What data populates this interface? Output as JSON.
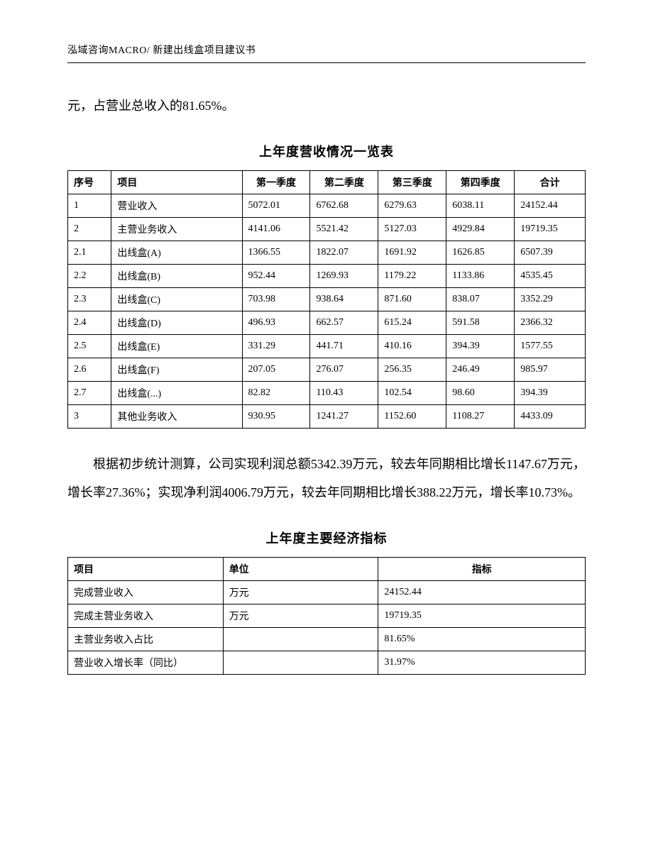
{
  "header": "泓域咨询MACRO/   新建出线盒项目建议书",
  "intro_line": "元，占营业总收入的81.65%。",
  "table1": {
    "title": "上年度营收情况一览表",
    "columns": [
      "序号",
      "项目",
      "第一季度",
      "第二季度",
      "第三季度",
      "第四季度",
      "合计"
    ],
    "rows": [
      [
        "1",
        "营业收入",
        "5072.01",
        "6762.68",
        "6279.63",
        "6038.11",
        "24152.44"
      ],
      [
        "2",
        "主营业务收入",
        "4141.06",
        "5521.42",
        "5127.03",
        "4929.84",
        "19719.35"
      ],
      [
        "2.1",
        "出线盒(A)",
        "1366.55",
        "1822.07",
        "1691.92",
        "1626.85",
        "6507.39"
      ],
      [
        "2.2",
        "出线盒(B)",
        "952.44",
        "1269.93",
        "1179.22",
        "1133.86",
        "4535.45"
      ],
      [
        "2.3",
        "出线盒(C)",
        "703.98",
        "938.64",
        "871.60",
        "838.07",
        "3352.29"
      ],
      [
        "2.4",
        "出线盒(D)",
        "496.93",
        "662.57",
        "615.24",
        "591.58",
        "2366.32"
      ],
      [
        "2.5",
        "出线盒(E)",
        "331.29",
        "441.71",
        "410.16",
        "394.39",
        "1577.55"
      ],
      [
        "2.6",
        "出线盒(F)",
        "207.05",
        "276.07",
        "256.35",
        "246.49",
        "985.97"
      ],
      [
        "2.7",
        "出线盒(...)",
        "82.82",
        "110.43",
        "102.54",
        "98.60",
        "394.39"
      ],
      [
        "3",
        "其他业务收入",
        "930.95",
        "1241.27",
        "1152.60",
        "1108.27",
        "4433.09"
      ]
    ]
  },
  "mid_paragraph": "根据初步统计测算，公司实现利润总额5342.39万元，较去年同期相比增长1147.67万元，增长率27.36%；实现净利润4006.79万元，较去年同期相比增长388.22万元，增长率10.73%。",
  "table2": {
    "title": "上年度主要经济指标",
    "columns": [
      "项目",
      "单位",
      "指标"
    ],
    "rows": [
      [
        "完成营业收入",
        "万元",
        "24152.44"
      ],
      [
        "完成主营业务收入",
        "万元",
        "19719.35"
      ],
      [
        "主营业务收入占比",
        "",
        "81.65%"
      ],
      [
        "营业收入增长率（同比）",
        "",
        "31.97%"
      ]
    ]
  }
}
